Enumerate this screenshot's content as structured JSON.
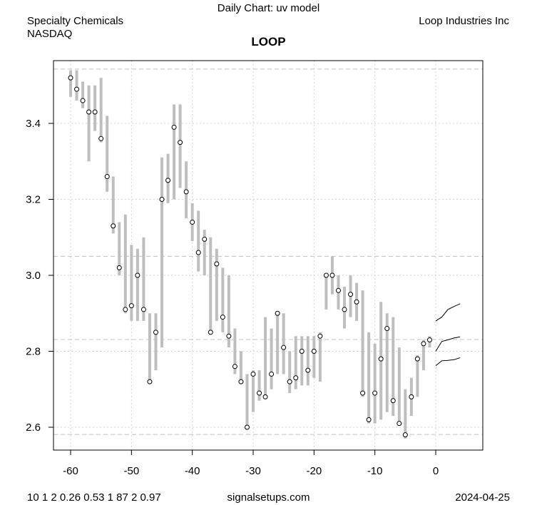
{
  "header": {
    "chart_title": "Daily Chart: uv model",
    "sector": "Specialty Chemicals",
    "exchange": "NASDAQ",
    "company": "Loop Industries Inc"
  },
  "footer": {
    "params": "10 1 2 0.26 0.53 1 87 2 0.97",
    "site": "signalsetups.com",
    "date": "2024-04-25"
  },
  "colors": {
    "bar": "#bebebe",
    "ref": "#c0c0c0",
    "grid": "#d3d3d3"
  },
  "chart_data": {
    "type": "line",
    "title": "LOOP",
    "xlabel": "",
    "ylabel": "",
    "xlim": [
      -63,
      8
    ],
    "ylim": [
      2.545,
      3.545
    ],
    "xticks": [
      -60,
      -50,
      -40,
      -30,
      -20,
      -10,
      0
    ],
    "xtick_labels": [
      "-60",
      "-50",
      "-40",
      "-30",
      "-20",
      "-10",
      "0"
    ],
    "yticks": [
      2.6,
      2.8,
      3.0,
      3.2,
      3.4
    ],
    "ytick_labels": [
      "2.6",
      "2.8",
      "3.0",
      "3.2",
      "3.4"
    ],
    "grid": true,
    "reference_lines": [
      3.543,
      3.05,
      2.831,
      2.581
    ],
    "bars": {
      "x": [
        -60,
        -59,
        -58,
        -57,
        -56,
        -55,
        -54,
        -53,
        -52,
        -51,
        -50,
        -49,
        -48,
        -47,
        -46,
        -45,
        -44,
        -43,
        -42,
        -41,
        -40,
        -39,
        -38,
        -37,
        -36,
        -35,
        -34,
        -33,
        -32,
        -31,
        -30,
        -29,
        -28,
        -27,
        -26,
        -25,
        -24,
        -23,
        -22,
        -21,
        -20,
        -19,
        -18,
        -17,
        -16,
        -15,
        -14,
        -13,
        -12,
        -11,
        -10,
        -9,
        -8,
        -7,
        -6,
        -5,
        -4,
        -3,
        -2,
        -1
      ],
      "close": [
        3.52,
        3.49,
        3.46,
        3.43,
        3.43,
        3.36,
        3.26,
        3.13,
        3.02,
        2.91,
        2.92,
        3.0,
        2.91,
        2.72,
        2.85,
        3.2,
        3.25,
        3.39,
        3.35,
        3.22,
        3.14,
        3.06,
        3.095,
        2.85,
        3.03,
        2.89,
        2.84,
        2.76,
        2.72,
        2.6,
        2.74,
        2.69,
        2.68,
        2.74,
        2.9,
        2.81,
        2.72,
        2.73,
        2.8,
        2.75,
        2.8,
        2.84,
        3.0,
        3.0,
        2.96,
        2.91,
        2.95,
        2.93,
        2.69,
        2.62,
        2.69,
        2.78,
        2.86,
        2.67,
        2.61,
        2.58,
        2.68,
        2.78,
        2.82,
        2.83
      ],
      "low": [
        3.47,
        3.46,
        3.44,
        3.3,
        3.38,
        3.35,
        3.22,
        3.11,
        3.0,
        2.9,
        2.88,
        2.88,
        2.88,
        2.72,
        2.75,
        2.81,
        3.19,
        3.2,
        3.23,
        3.15,
        3.09,
        3.01,
        3.0,
        2.85,
        2.88,
        2.85,
        2.81,
        2.74,
        2.72,
        2.6,
        2.64,
        2.67,
        2.68,
        2.7,
        2.74,
        2.74,
        2.69,
        2.7,
        2.71,
        2.71,
        2.73,
        2.72,
        2.91,
        2.95,
        2.91,
        2.86,
        2.89,
        2.88,
        2.68,
        2.61,
        2.61,
        2.62,
        2.64,
        2.63,
        2.61,
        2.57,
        2.63,
        2.68,
        2.75,
        2.81
      ],
      "high": [
        3.54,
        3.54,
        3.51,
        3.5,
        3.5,
        3.52,
        3.42,
        3.26,
        3.14,
        3.16,
        3.08,
        3.07,
        3.1,
        2.9,
        2.9,
        3.31,
        3.32,
        3.45,
        3.45,
        3.3,
        3.19,
        3.17,
        3.12,
        3.1,
        3.07,
        3.02,
        3.0,
        2.86,
        2.8,
        2.74,
        2.75,
        2.75,
        2.89,
        2.86,
        2.9,
        2.9,
        2.8,
        2.84,
        2.84,
        2.84,
        2.84,
        2.85,
        3.0,
        3.05,
        3.0,
        2.97,
        3.0,
        2.98,
        2.96,
        2.85,
        2.82,
        2.93,
        2.9,
        2.89,
        2.81,
        2.7,
        2.73,
        2.79,
        2.83,
        2.84
      ]
    },
    "series": [
      {
        "name": "forecast-upper",
        "x": [
          0,
          1,
          2,
          3,
          4
        ],
        "values": [
          2.88,
          2.89,
          2.91,
          2.918,
          2.925
        ]
      },
      {
        "name": "forecast-mid",
        "x": [
          0,
          1,
          2,
          3,
          4
        ],
        "values": [
          2.8,
          2.826,
          2.83,
          2.835,
          2.838
        ]
      },
      {
        "name": "forecast-lower",
        "x": [
          0,
          1,
          2,
          3,
          4
        ],
        "values": [
          2.762,
          2.775,
          2.776,
          2.778,
          2.783
        ]
      }
    ]
  }
}
